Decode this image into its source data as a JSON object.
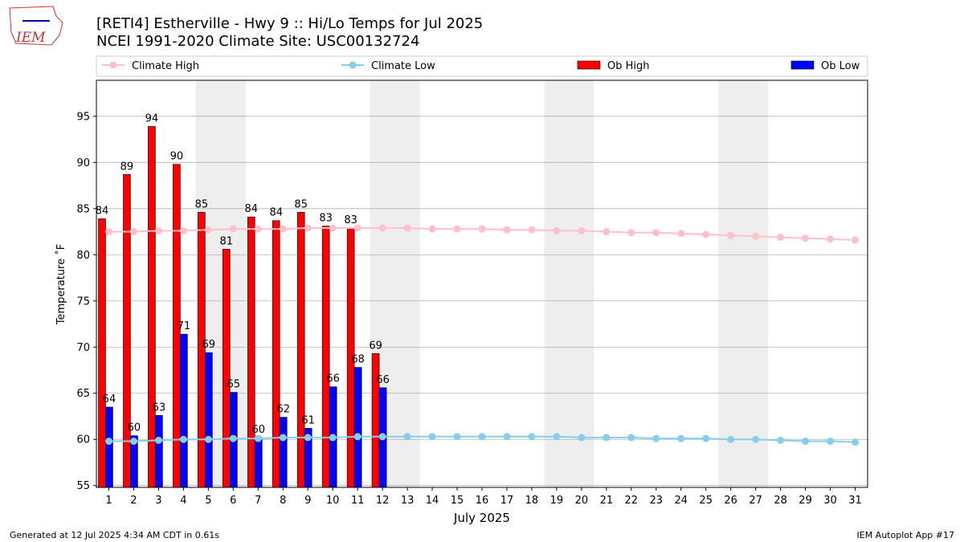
{
  "chart_data": {
    "type": "bar_line",
    "logo": "IEM",
    "title": "[RETI4] Estherville - Hwy 9 :: Hi/Lo Temps for Jul 2025",
    "subtitle": "NCEI 1991-2020 Climate Site: USC00132724",
    "xlabel": "July 2025",
    "ylabel": "Temperature ˚F",
    "footer_left": "Generated at 12 Jul 2025 4:34 AM CDT in 0.61s",
    "footer_right": "IEM Autoplot App #17",
    "x": [
      1,
      2,
      3,
      4,
      5,
      6,
      7,
      8,
      9,
      10,
      11,
      12,
      13,
      14,
      15,
      16,
      17,
      18,
      19,
      20,
      21,
      22,
      23,
      24,
      25,
      26,
      27,
      28,
      29,
      30,
      31
    ],
    "xlim": [
      0.5,
      31.5
    ],
    "ylim": [
      54.8,
      98.9
    ],
    "yticks": [
      55,
      60,
      65,
      70,
      75,
      80,
      85,
      90,
      95
    ],
    "grid": true,
    "shaded_days": [
      [
        5,
        6
      ],
      [
        12,
        13
      ],
      [
        19,
        20
      ],
      [
        26,
        27
      ]
    ],
    "series": [
      {
        "name": "Climate High",
        "kind": "line",
        "color": "#ffc0cb",
        "values": [
          82.5,
          82.5,
          82.6,
          82.6,
          82.7,
          82.8,
          82.8,
          82.8,
          82.9,
          82.9,
          82.9,
          82.9,
          82.9,
          82.8,
          82.8,
          82.8,
          82.7,
          82.7,
          82.6,
          82.6,
          82.5,
          82.4,
          82.4,
          82.3,
          82.2,
          82.1,
          82.0,
          81.9,
          81.8,
          81.7,
          81.6
        ]
      },
      {
        "name": "Climate Low",
        "kind": "line",
        "color": "#87ceeb",
        "values": [
          59.8,
          59.8,
          59.9,
          60.0,
          60.0,
          60.1,
          60.1,
          60.2,
          60.2,
          60.2,
          60.3,
          60.3,
          60.3,
          60.3,
          60.3,
          60.3,
          60.3,
          60.3,
          60.3,
          60.2,
          60.2,
          60.2,
          60.1,
          60.1,
          60.1,
          60.0,
          60.0,
          59.9,
          59.8,
          59.8,
          59.7
        ]
      },
      {
        "name": "Ob High",
        "kind": "bar",
        "color": "#ff0000",
        "values": [
          83.9,
          88.7,
          93.9,
          89.8,
          84.6,
          80.6,
          84.1,
          83.7,
          84.6,
          83.1,
          82.9,
          69.3,
          null,
          null,
          null,
          null,
          null,
          null,
          null,
          null,
          null,
          null,
          null,
          null,
          null,
          null,
          null,
          null,
          null,
          null,
          null
        ],
        "value_labels": [
          "84",
          "89",
          "94",
          "90",
          "85",
          "81",
          "84",
          "84",
          "85",
          "83",
          "83",
          "69",
          null,
          null,
          null,
          null,
          null,
          null,
          null,
          null,
          null,
          null,
          null,
          null,
          null,
          null,
          null,
          null,
          null,
          null,
          null
        ]
      },
      {
        "name": "Ob Low",
        "kind": "bar",
        "color": "#0000ff",
        "values": [
          63.5,
          60.4,
          62.6,
          71.4,
          69.4,
          65.1,
          60.2,
          62.4,
          61.2,
          65.7,
          67.8,
          65.6,
          null,
          null,
          null,
          null,
          null,
          null,
          null,
          null,
          null,
          null,
          null,
          null,
          null,
          null,
          null,
          null,
          null,
          null,
          null
        ],
        "value_labels": [
          "64",
          "60",
          "63",
          "71",
          "69",
          "65",
          "60",
          "62",
          "61",
          "66",
          "68",
          "66",
          null,
          null,
          null,
          null,
          null,
          null,
          null,
          null,
          null,
          null,
          null,
          null,
          null,
          null,
          null,
          null,
          null,
          null,
          null
        ]
      }
    ]
  }
}
